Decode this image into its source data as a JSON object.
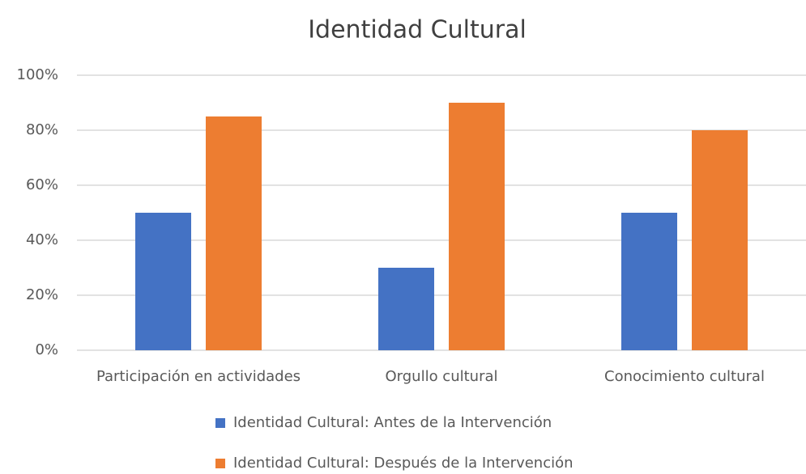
{
  "chart_data": {
    "type": "bar",
    "title": "Identidad Cultural",
    "categories": [
      "Participación en actividades",
      "Orgullo cultural",
      "Conocimiento cultural"
    ],
    "series": [
      {
        "name": "Identidad Cultural: Antes de la Intervención",
        "color": "#4472c4",
        "values": [
          50,
          30,
          50
        ]
      },
      {
        "name": "Identidad Cultural: Después de la Intervención",
        "color": "#ed7d31",
        "values": [
          85,
          90,
          80
        ]
      }
    ],
    "ylim": [
      0,
      100
    ],
    "yticks": [
      {
        "value": 0,
        "label": "0%"
      },
      {
        "value": 20,
        "label": "20%"
      },
      {
        "value": 40,
        "label": "40%"
      },
      {
        "value": 60,
        "label": "60%"
      },
      {
        "value": 80,
        "label": "80%"
      },
      {
        "value": 100,
        "label": "100%"
      }
    ],
    "grid": true,
    "legend": "bottom"
  }
}
